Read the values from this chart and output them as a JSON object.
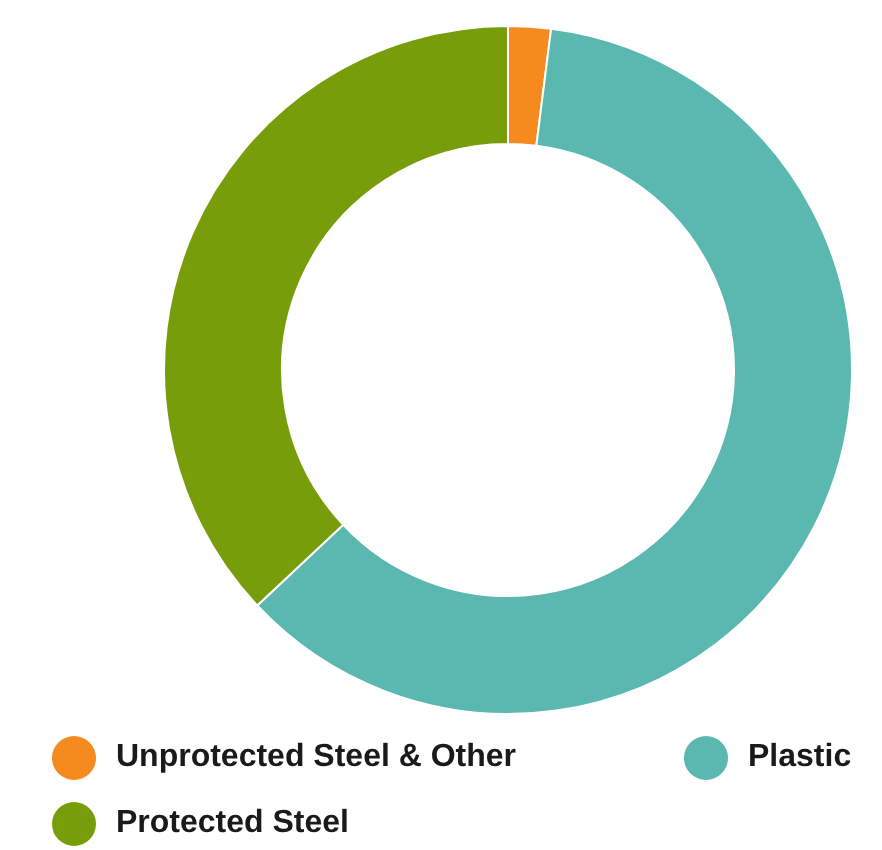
{
  "chart_data": {
    "type": "donut",
    "categories": [
      "Unprotected Steel & Other",
      "Plastic",
      "Protected Steel"
    ],
    "values": [
      2,
      61,
      37
    ],
    "colors": [
      "#f58a1f",
      "#5bb8b0",
      "#789d0a"
    ],
    "legend": "bottom"
  }
}
